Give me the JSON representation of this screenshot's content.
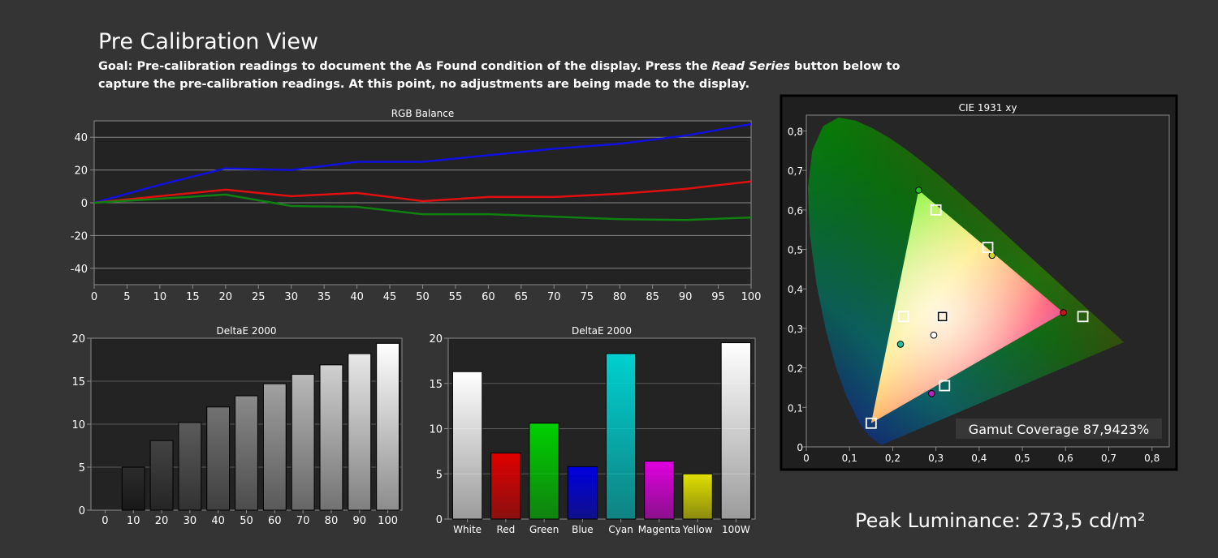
{
  "page": {
    "title": "Pre Calibration View",
    "goal_part1": "Goal: Pre-calibration readings to document the As Found condition of the display. Press the ",
    "goal_emphasis": "Read Series",
    "goal_part2": " button below to",
    "goal_line2": "capture the pre-calibration readings. At this point, no adjustments are being made to the display.",
    "peak_luminance": "Peak Luminance: 273,5 cd/m²"
  },
  "colors": {
    "background": "#343434",
    "plot_bg": "#232323",
    "grid": "#8a8a8a",
    "blue": "#1010e0",
    "red": "#e01010",
    "green": "#108010"
  },
  "chart_data": [
    {
      "type": "line",
      "title": "RGB Balance",
      "x": [
        0,
        10,
        20,
        30,
        40,
        50,
        60,
        70,
        80,
        90,
        100
      ],
      "xticks": [
        0,
        5,
        10,
        15,
        20,
        25,
        30,
        35,
        40,
        45,
        50,
        55,
        60,
        65,
        70,
        75,
        80,
        85,
        90,
        95,
        100
      ],
      "yticks": [
        40,
        20,
        0,
        -20,
        -40
      ],
      "ylim": [
        -50,
        50
      ],
      "xlim": [
        0,
        100
      ],
      "grid": true,
      "series": [
        {
          "color": "#1010e0",
          "values": [
            0,
            11,
            21,
            20,
            25,
            25,
            29,
            33,
            36,
            41,
            48
          ]
        },
        {
          "color": "#e01010",
          "values": [
            0,
            4,
            8,
            4,
            6,
            1,
            3.5,
            3.5,
            5.5,
            8.5,
            13
          ]
        },
        {
          "color": "#108010",
          "values": [
            0,
            2.5,
            5,
            -2,
            -2.5,
            -7,
            -7,
            -8.5,
            -10,
            -10.5,
            -9
          ]
        }
      ]
    },
    {
      "type": "bar",
      "title": "DeltaE 2000",
      "categories": [
        "0",
        "10",
        "20",
        "30",
        "40",
        "50",
        "60",
        "70",
        "80",
        "90",
        "100"
      ],
      "values": [
        0,
        5,
        8.1,
        10.2,
        12,
        13.3,
        14.7,
        15.8,
        16.9,
        18.2,
        19.4
      ],
      "yticks": [
        20,
        15,
        10,
        5,
        0
      ],
      "ylim": [
        0,
        20
      ]
    },
    {
      "type": "bar",
      "title": "DeltaE 2000",
      "categories": [
        "White",
        "Red",
        "Green",
        "Blue",
        "Cyan",
        "Magenta",
        "Yellow",
        "100W"
      ],
      "values": [
        16.3,
        7.3,
        10.6,
        5.8,
        18.3,
        6.4,
        5,
        19.5
      ],
      "bar_colors": [
        "#ffffff",
        "#e00000",
        "#00d000",
        "#0000e0",
        "#00d0d0",
        "#e000e0",
        "#e0e000",
        "#ffffff"
      ],
      "yticks": [
        20,
        15,
        10,
        5,
        0
      ],
      "ylim": [
        0,
        20
      ]
    },
    {
      "type": "scatter",
      "title": "CIE 1931 xy",
      "xticks": [
        "0",
        "0,1",
        "0,2",
        "0,3",
        "0,4",
        "0,5",
        "0,6",
        "0,7",
        "0,8"
      ],
      "yticks": [
        "0,8",
        "0,7",
        "0,6",
        "0,5",
        "0,4",
        "0,3",
        "0,2",
        "0,1",
        "0"
      ],
      "xlim": [
        0,
        0.84
      ],
      "ylim": [
        0,
        0.84
      ],
      "gamut_coverage": "Gamut Coverage 87,9423%",
      "targets": [
        {
          "x": 0.3,
          "y": 0.6
        },
        {
          "x": 0.42,
          "y": 0.505
        },
        {
          "x": 0.64,
          "y": 0.33
        },
        {
          "x": 0.315,
          "y": 0.33
        },
        {
          "x": 0.225,
          "y": 0.33
        },
        {
          "x": 0.32,
          "y": 0.155
        },
        {
          "x": 0.15,
          "y": 0.06
        }
      ],
      "measured": [
        {
          "x": 0.26,
          "y": 0.65,
          "color": "#20c020"
        },
        {
          "x": 0.43,
          "y": 0.485,
          "color": "#d0d020"
        },
        {
          "x": 0.595,
          "y": 0.34,
          "color": "#d01010"
        },
        {
          "x": 0.295,
          "y": 0.283,
          "color": "#ffffff"
        },
        {
          "x": 0.218,
          "y": 0.26,
          "color": "#20c0a0"
        },
        {
          "x": 0.29,
          "y": 0.135,
          "color": "#c020c0"
        }
      ]
    }
  ]
}
